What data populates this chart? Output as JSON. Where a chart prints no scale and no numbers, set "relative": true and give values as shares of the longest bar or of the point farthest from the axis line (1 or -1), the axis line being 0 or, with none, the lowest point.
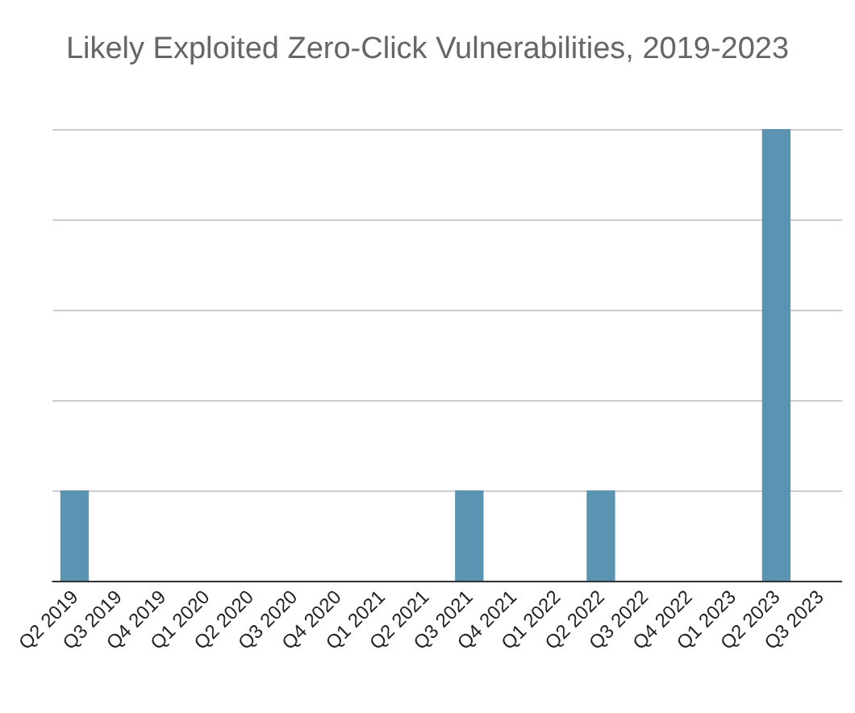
{
  "chart_data": {
    "type": "bar",
    "title": "Likely Exploited Zero-Click Vulnerabilities, 2019-2023",
    "categories": [
      "Q2 2019",
      "Q3 2019",
      "Q4 2019",
      "Q1 2020",
      "Q2 2020",
      "Q3 2020",
      "Q4 2020",
      "Q1 2021",
      "Q2 2021",
      "Q3 2021",
      "Q4 2021",
      "Q1 2022",
      "Q2 2022",
      "Q3 2022",
      "Q4 2022",
      "Q1 2023",
      "Q2 2023",
      "Q3 2023"
    ],
    "values": [
      0.2,
      0,
      0,
      0,
      0,
      0,
      0,
      0,
      0,
      0.2,
      0,
      0,
      0.2,
      0,
      0,
      0,
      1,
      null
    ],
    "color": "#5a94b2",
    "relative": true,
    "grid": "y"
  }
}
